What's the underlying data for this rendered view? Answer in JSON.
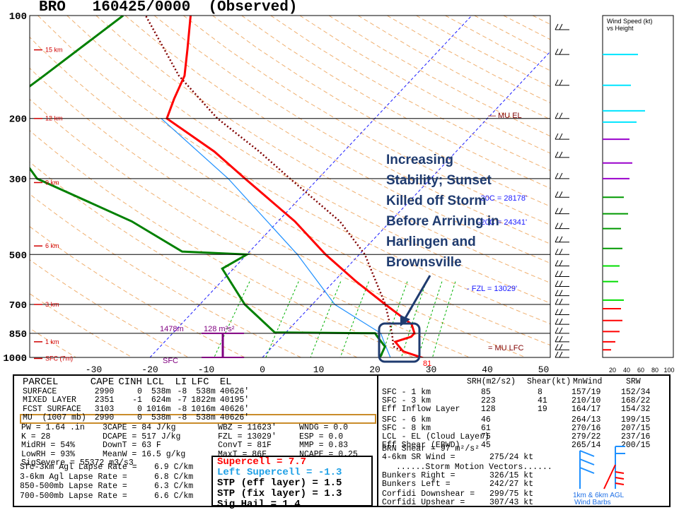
{
  "title": "BRO   160425/0000  (Observed)",
  "colors": {
    "temperature": "#ff0000",
    "dewpoint": "#008000",
    "wetbulb": "#1e90ff",
    "parcel": "#800000",
    "annotation": "#1f3b6f",
    "dry_adiabat": "#f0b070",
    "mixing_ratio": "#00b000",
    "isotherm": "#1a1aff",
    "srh": "#800080"
  },
  "chart_data": {
    "type": "skew-t",
    "pressure_levels": [
      100,
      200,
      300,
      500,
      700,
      850,
      1000
    ],
    "pressure_labels": [
      "100",
      "200",
      "300",
      "500",
      "700",
      "850",
      "1000"
    ],
    "height_marks": [
      {
        "label": "15 km",
        "pressure": 126
      },
      {
        "label": "12 km",
        "pressure": 200
      },
      {
        "label": "9 km",
        "pressure": 308
      },
      {
        "label": "6 km",
        "pressure": 472
      },
      {
        "label": "3 km",
        "pressure": 700
      },
      {
        "label": "1 km",
        "pressure": 900
      },
      {
        "label": "SFC (7m)",
        "pressure": 1007
      }
    ],
    "temperature_ticks": [
      -30,
      -20,
      -10,
      0,
      10,
      20,
      30,
      40,
      50
    ],
    "temperature": [
      {
        "p": 1007,
        "t": 29
      },
      {
        "p": 960,
        "t": 24
      },
      {
        "p": 900,
        "t": 21
      },
      {
        "p": 870,
        "t": 23
      },
      {
        "p": 850,
        "t": 23
      },
      {
        "p": 800,
        "t": 21
      },
      {
        "p": 700,
        "t": 13
      },
      {
        "p": 600,
        "t": 4
      },
      {
        "p": 500,
        "t": -6
      },
      {
        "p": 400,
        "t": -17
      },
      {
        "p": 300,
        "t": -33
      },
      {
        "p": 250,
        "t": -43
      },
      {
        "p": 200,
        "t": -57
      },
      {
        "p": 175,
        "t": -59
      },
      {
        "p": 150,
        "t": -61
      },
      {
        "p": 125,
        "t": -65
      },
      {
        "p": 100,
        "t": -70
      }
    ],
    "dewpoint": [
      {
        "p": 1007,
        "t": 21
      },
      {
        "p": 930,
        "t": 20
      },
      {
        "p": 870,
        "t": 17
      },
      {
        "p": 850,
        "t": 16
      },
      {
        "p": 845,
        "t": -2
      },
      {
        "p": 700,
        "t": -12
      },
      {
        "p": 550,
        "t": -22
      },
      {
        "p": 500,
        "t": -20
      },
      {
        "p": 490,
        "t": -32
      },
      {
        "p": 400,
        "t": -46
      },
      {
        "p": 300,
        "t": -70
      },
      {
        "p": 250,
        "t": -78
      },
      {
        "p": 200,
        "t": -86
      },
      {
        "p": 190,
        "t": -84
      },
      {
        "p": 180,
        "t": -88
      },
      {
        "p": 150,
        "t": -86
      },
      {
        "p": 100,
        "t": -82
      }
    ],
    "wetbulb": [
      {
        "p": 1007,
        "t": 23
      },
      {
        "p": 900,
        "t": 19
      },
      {
        "p": 850,
        "t": 17
      },
      {
        "p": 700,
        "t": 4
      },
      {
        "p": 500,
        "t": -11
      },
      {
        "p": 300,
        "t": -36
      },
      {
        "p": 200,
        "t": -58
      }
    ],
    "parcel": [
      {
        "p": 1007,
        "t": 29
      },
      {
        "p": 960,
        "t": 24
      },
      {
        "p": 930,
        "t": 21.5
      },
      {
        "p": 850,
        "t": 19
      },
      {
        "p": 700,
        "t": 13
      },
      {
        "p": 500,
        "t": 1
      },
      {
        "p": 400,
        "t": -9
      },
      {
        "p": 300,
        "t": -25
      },
      {
        "p": 250,
        "t": -35
      },
      {
        "p": 200,
        "t": -48
      },
      {
        "p": 150,
        "t": -62
      },
      {
        "p": 100,
        "t": -78
      }
    ],
    "wind_speeds_kt": [
      20,
      40,
      60,
      80,
      100
    ],
    "profile_annotations": {
      "mu_el": "MU EL",
      "mu_lfc": "MU LFC",
      "minus30c": "-30C = 28178'",
      "minus20c": "-20C = 24341'",
      "fzl": "FZL = 13029'",
      "srh_depth": "1478m",
      "srh_value": "128 m²s²",
      "sfc": "SFC",
      "sfc_temp": "81"
    },
    "legend_top_right": [
      "Wind Speed (kt)",
      "vs Height"
    ]
  },
  "annotation_text": [
    "Increasing",
    "Stability; Sunset",
    "Killed off Storm",
    "Before Arriving in",
    "Harlingen and",
    "Brownsville"
  ],
  "parcel_table": {
    "headers": [
      "PARCEL",
      "CAPE",
      "CINH",
      "LCL",
      "LI",
      "LFC",
      "EL"
    ],
    "rows": [
      [
        "SURFACE",
        "2990",
        "0",
        "538m",
        "-8",
        "538m",
        "40626'"
      ],
      [
        "MIXED LAYER",
        "2351",
        "-1",
        "624m",
        "-7",
        "1822m",
        "40195'"
      ],
      [
        "FCST SURFACE",
        "3103",
        "0",
        "1016m",
        "-8",
        "1016m",
        "40626'"
      ],
      [
        "MU  (1007 mb)",
        "2990",
        "0",
        "538m",
        "-8",
        "538m",
        "40626'"
      ]
    ]
  },
  "indices": {
    "col1": [
      "PW = 1.64 .in",
      "K = 28",
      "MidRH = 54%",
      "LowRH = 93%",
      "SigSevere = 55372 m3/s3"
    ],
    "col2": [
      "3CAPE = 84 J/kg",
      "DCAPE = 517 J/kg",
      "DownT = 63 F",
      "MeanW = 16.5 g/kg"
    ],
    "col3": [
      "WBZ = 11623'",
      "FZL = 13029'",
      "ConvT = 81F",
      "MaxT = 86F"
    ],
    "col4": [
      "WNDG = 0.0",
      "ESP = 0.0",
      "MMP = 0.83",
      "NCAPE = 0.25"
    ]
  },
  "lapse_rates": [
    {
      "label": "Sfc-3km Agl Lapse Rate =",
      "value": "6.9 C/km"
    },
    {
      "label": "3-6km Agl Lapse Rate =",
      "value": "6.8 C/km"
    },
    {
      "label": "850-500mb Lapse Rate =",
      "value": "6.3 C/km"
    },
    {
      "label": "700-500mb Lapse Rate =",
      "value": "6.6 C/km"
    }
  ],
  "supercell": {
    "supercell": "Supercell = 7.7",
    "left_supercell": "Left Supercell = -1.3",
    "stp_eff": "STP (eff layer) = 1.5",
    "stp_fix": "STP (fix layer) = 1.3",
    "sig_hail": "Sig Hail = 1.4"
  },
  "kinematics": {
    "headers": [
      "SRH(m2/s2)",
      "Shear(kt)",
      "MnWind",
      "SRW"
    ],
    "rows": [
      [
        "SFC - 1 km",
        "85",
        "8",
        "157/19",
        "152/34"
      ],
      [
        "SFC - 3 km",
        "223",
        "41",
        "210/10",
        "168/22"
      ],
      [
        "Eff Inflow Layer",
        "128",
        "19",
        "164/17",
        "154/32"
      ],
      [
        "SFC - 6 km",
        "46",
        "264/13",
        "199/15"
      ],
      [
        "SFC - 8 km",
        "61",
        "270/16",
        "207/15"
      ],
      [
        "LCL - EL (Cloud Layer)",
        "75",
        "279/22",
        "237/16"
      ],
      [
        "Eff Shear (EBWD)",
        "45",
        "265/14",
        "200/15"
      ]
    ],
    "brn_shear": "BRN Shear = 97 m²/s²",
    "sr_wind": "4-6km SR Wind =",
    "sr_wind_val": "275/24 kt",
    "storm_motion_title": "......Storm Motion Vectors......",
    "bunkers_right": "Bunkers Right =",
    "bunkers_right_val": "326/15 kt",
    "bunkers_left": "Bunkers Left =",
    "bunkers_left_val": "242/27 kt",
    "corfidi_down": "Corfidi Downshear =",
    "corfidi_down_val": "299/75 kt",
    "corfidi_up": "Corfidi Upshear =",
    "corfidi_up_val": "307/43 kt"
  },
  "hodo_caption": [
    "1km & 6km AGL",
    "Wind Barbs"
  ]
}
